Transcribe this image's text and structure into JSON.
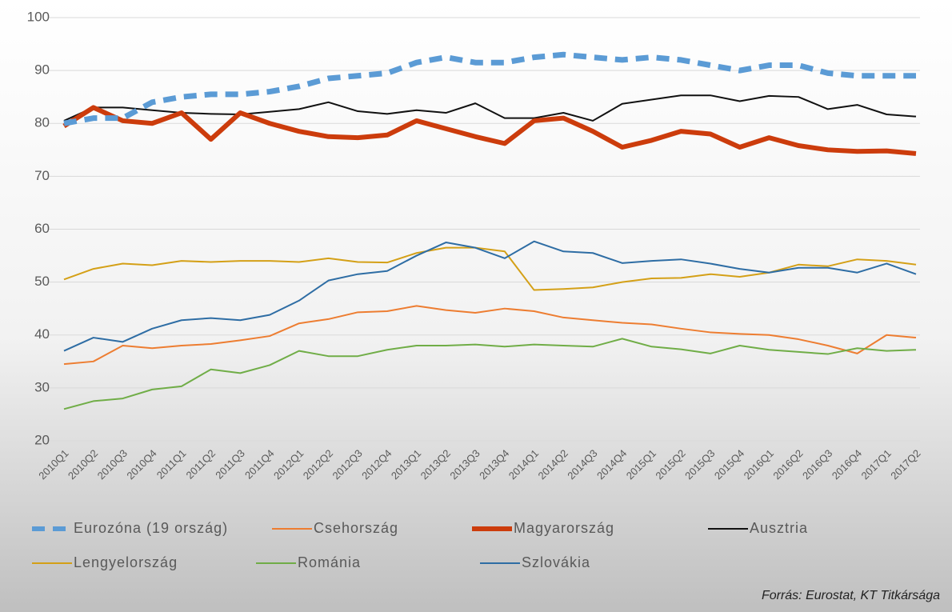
{
  "chart_data": {
    "type": "line",
    "categories": [
      "2010Q1",
      "2010Q2",
      "2010Q3",
      "2010Q4",
      "2011Q1",
      "2011Q2",
      "2011Q3",
      "2011Q4",
      "2012Q1",
      "2012Q2",
      "2012Q3",
      "2012Q4",
      "2013Q1",
      "2013Q2",
      "2013Q3",
      "2013Q4",
      "2014Q1",
      "2014Q2",
      "2014Q3",
      "2014Q4",
      "2015Q1",
      "2015Q2",
      "2015Q3",
      "2015Q4",
      "2016Q1",
      "2016Q2",
      "2016Q3",
      "2016Q4",
      "2017Q1",
      "2017Q2"
    ],
    "series": [
      {
        "name": "Eurozóna (19 ország)",
        "color": "#5b9bd5",
        "line_width": 7,
        "line_style": "dashed",
        "values": [
          80,
          81,
          81,
          84,
          85,
          85.5,
          85.5,
          86,
          87,
          88.5,
          89,
          89.5,
          91.5,
          92.5,
          91.5,
          91.5,
          92.5,
          93,
          92.5,
          92,
          92.5,
          92,
          91,
          90,
          91,
          91,
          89.5,
          89,
          89,
          89
        ]
      },
      {
        "name": "Csehország",
        "color": "#ed7d31",
        "line_width": 2,
        "line_style": "solid",
        "values": [
          34.5,
          35,
          38,
          37.5,
          38,
          38.3,
          39,
          39.8,
          42.2,
          43,
          44.3,
          44.5,
          45.5,
          44.7,
          44.2,
          45,
          44.5,
          43.3,
          42.8,
          42.3,
          42,
          41.2,
          40.5,
          40.2,
          40,
          39.2,
          38,
          36.5,
          40,
          39.5
        ]
      },
      {
        "name": "Magyarország",
        "color": "#cc3c0c",
        "line_width": 6,
        "line_style": "solid",
        "values": [
          79.5,
          83,
          80.5,
          80,
          82,
          77,
          82,
          80,
          78.5,
          77.5,
          77.3,
          77.8,
          80.5,
          79,
          77.5,
          76.2,
          80.5,
          81,
          78.5,
          75.5,
          76.8,
          78.5,
          78,
          75.5,
          77.3,
          75.8,
          75,
          74.7,
          74.8,
          74.3
        ]
      },
      {
        "name": "Ausztria",
        "color": "#111111",
        "line_width": 2,
        "line_style": "solid",
        "values": [
          80.5,
          83,
          83,
          82.5,
          82,
          81.8,
          81.7,
          82.2,
          82.7,
          84,
          82.3,
          81.8,
          82.5,
          82,
          83.8,
          81,
          81,
          82,
          80.5,
          83.7,
          84.5,
          85.3,
          85.3,
          84.2,
          85.2,
          85,
          82.7,
          83.5,
          81.7,
          81.3
        ]
      },
      {
        "name": "Lengyelország",
        "color": "#d4a017",
        "line_width": 2,
        "line_style": "solid",
        "values": [
          50.5,
          52.5,
          53.5,
          53.2,
          54,
          53.8,
          54,
          54,
          53.8,
          54.5,
          53.8,
          53.7,
          55.5,
          56.5,
          56.5,
          55.8,
          48.5,
          48.7,
          49,
          50,
          50.7,
          50.8,
          51.5,
          51,
          51.8,
          53.3,
          53,
          54.3,
          54,
          53.3
        ]
      },
      {
        "name": "Románia",
        "color": "#70ad47",
        "line_width": 2,
        "line_style": "solid",
        "values": [
          26,
          27.5,
          28,
          29.7,
          30.3,
          33.5,
          32.8,
          34.3,
          37,
          36,
          36,
          37.2,
          38,
          38,
          38.2,
          37.8,
          38.2,
          38,
          37.8,
          39.3,
          37.8,
          37.3,
          36.5,
          38,
          37.2,
          36.8,
          36.4,
          37.5,
          37,
          37.2
        ]
      },
      {
        "name": "Szlovákia",
        "color": "#2e6da4",
        "line_width": 2,
        "line_style": "solid",
        "values": [
          37,
          39.5,
          38.7,
          41.2,
          42.8,
          43.2,
          42.8,
          43.8,
          46.5,
          50.3,
          51.5,
          52.1,
          55,
          57.5,
          56.5,
          54.5,
          57.7,
          55.8,
          55.5,
          53.6,
          54,
          54.3,
          53.5,
          52.5,
          51.8,
          52.7,
          52.7,
          51.8,
          53.5,
          51.5
        ]
      }
    ],
    "ylim": [
      20,
      100
    ],
    "yticks": [
      20,
      30,
      40,
      50,
      60,
      70,
      80,
      90,
      100
    ],
    "grid": true,
    "legend": "bottom",
    "source": "Forrás: Eurostat, KT Titkársága"
  }
}
